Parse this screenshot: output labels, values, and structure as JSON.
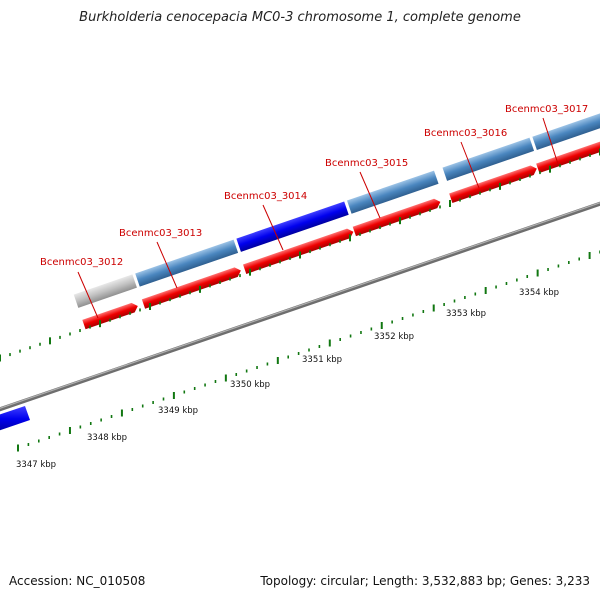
{
  "title": "Burkholderia cenocepacia MC0-3 chromosome 1, complete genome",
  "accession": "Accession: NC_010508",
  "summary": "Topology: circular; Length: 3,532,883 bp; Genes: 3,233",
  "colors": {
    "gene_label": "#cc0000",
    "cds_forward": "#ff0000",
    "gene_steelblue": "#4a86bf",
    "gene_blue": "#0000ee",
    "gene_gray": "#c0c0c0",
    "backbone": "#888888",
    "tick": "#117711"
  },
  "gene_labels": [
    {
      "text": "Bcenmc03_3012"
    },
    {
      "text": "Bcenmc03_3013"
    },
    {
      "text": "Bcenmc03_3014"
    },
    {
      "text": "Bcenmc03_3015"
    },
    {
      "text": "Bcenmc03_3016"
    },
    {
      "text": "Bcenmc03_3017"
    }
  ],
  "kbp_labels": [
    {
      "text": "3347 kbp"
    },
    {
      "text": "3348 kbp"
    },
    {
      "text": "3349 kbp"
    },
    {
      "text": "3350 kbp"
    },
    {
      "text": "3351 kbp"
    },
    {
      "text": "3352 kbp"
    },
    {
      "text": "3353 kbp"
    },
    {
      "text": "3354 kbp"
    }
  ]
}
